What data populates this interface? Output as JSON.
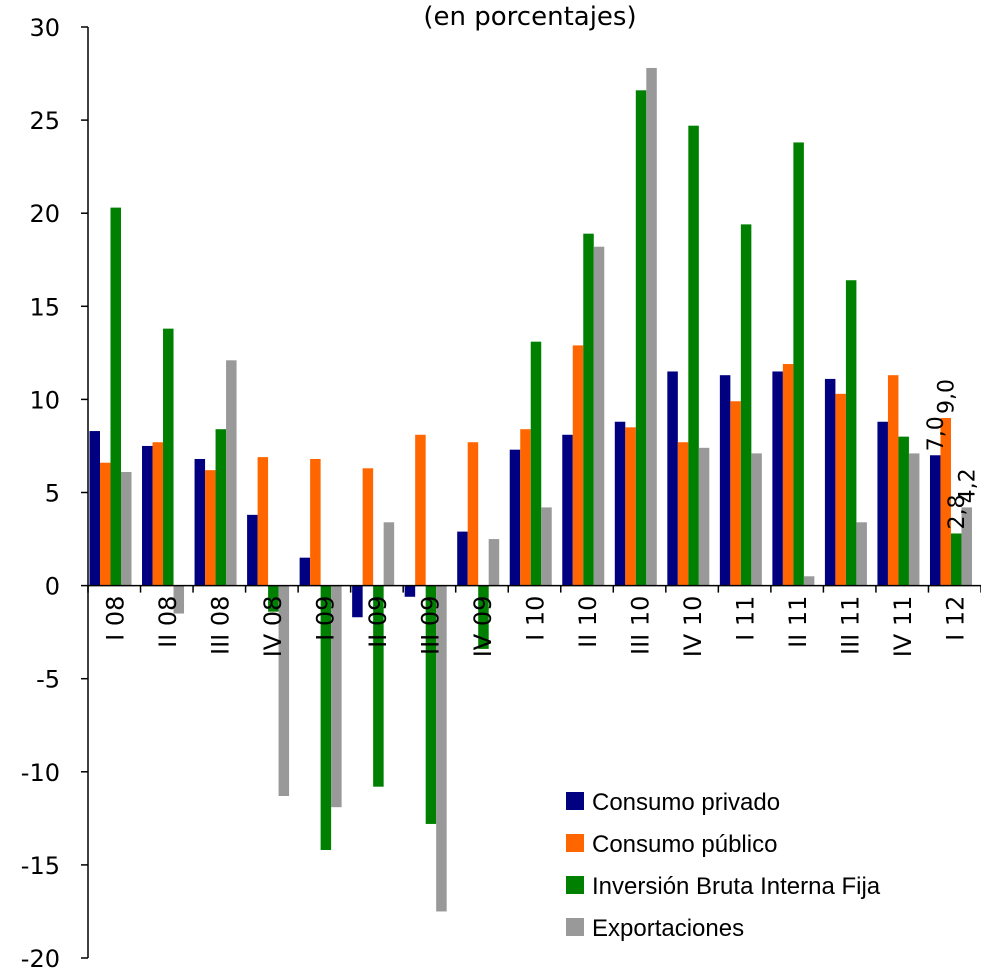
{
  "chart_data": {
    "type": "bar",
    "title": "(en porcentajes)",
    "xlabel": "",
    "ylabel": "",
    "ylim": [
      -20,
      30
    ],
    "yticks": [
      30,
      25,
      20,
      15,
      10,
      5,
      0,
      -5,
      -10,
      -15,
      -20
    ],
    "grid": false,
    "legend_position": "bottom-right",
    "categories": [
      "I 08",
      "II 08",
      "III 08",
      "IV 08",
      "I 09",
      "II 09",
      "III 09",
      "IV 09",
      "I 10",
      "II 10",
      "III 10",
      "IV 10",
      "I 11",
      "II 11",
      "III 11",
      "IV 11",
      "I 12"
    ],
    "series": [
      {
        "name": "Consumo privado",
        "color": "#000080",
        "values": [
          8.3,
          7.5,
          6.8,
          3.8,
          1.5,
          -1.7,
          -0.6,
          2.9,
          7.3,
          8.1,
          8.8,
          11.5,
          11.3,
          11.5,
          11.1,
          8.8,
          7.0
        ]
      },
      {
        "name": "Consumo público",
        "color": "#ff6600",
        "values": [
          6.6,
          7.7,
          6.2,
          6.9,
          6.8,
          6.3,
          8.1,
          7.7,
          8.4,
          12.9,
          8.5,
          7.7,
          9.9,
          11.9,
          10.3,
          11.3,
          9.0
        ]
      },
      {
        "name": "Inversión Bruta Interna Fija",
        "color": "#008000",
        "values": [
          20.3,
          13.8,
          8.4,
          -1.4,
          -14.2,
          -10.8,
          -12.8,
          -3.4,
          13.1,
          18.9,
          26.6,
          24.7,
          19.4,
          23.8,
          16.4,
          8.0,
          2.8
        ]
      },
      {
        "name": "Exportaciones",
        "color": "#999999",
        "values": [
          6.1,
          -1.5,
          12.1,
          -11.3,
          -11.9,
          3.4,
          -17.5,
          2.5,
          4.2,
          18.2,
          27.8,
          7.4,
          7.1,
          0.5,
          3.4,
          7.1,
          4.2
        ]
      }
    ],
    "data_labels": [
      {
        "series": 0,
        "category": 16,
        "text": "7,0"
      },
      {
        "series": 1,
        "category": 16,
        "text": "9,0"
      },
      {
        "series": 2,
        "category": 16,
        "text": "2,8"
      },
      {
        "series": 3,
        "category": 16,
        "text": "4,2"
      }
    ]
  }
}
